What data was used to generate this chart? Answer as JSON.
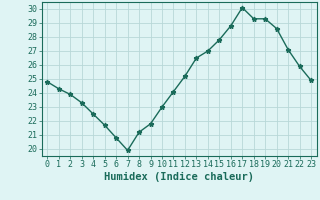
{
  "x": [
    0,
    1,
    2,
    3,
    4,
    5,
    6,
    7,
    8,
    9,
    10,
    11,
    12,
    13,
    14,
    15,
    16,
    17,
    18,
    19,
    20,
    21,
    22,
    23
  ],
  "y": [
    24.8,
    24.3,
    23.9,
    23.3,
    22.5,
    21.7,
    20.8,
    19.9,
    21.2,
    21.8,
    23.0,
    24.1,
    25.2,
    26.5,
    27.0,
    27.8,
    28.8,
    30.1,
    29.3,
    29.3,
    28.6,
    27.1,
    25.9,
    24.9
  ],
  "line_color": "#1a6b5a",
  "marker": "*",
  "marker_size": 3.5,
  "bg_color": "#dff4f4",
  "grid_color": "#b8d8d8",
  "xlabel": "Humidex (Indice chaleur)",
  "ylim": [
    19.5,
    30.5
  ],
  "xlim": [
    -0.5,
    23.5
  ],
  "yticks": [
    20,
    21,
    22,
    23,
    24,
    25,
    26,
    27,
    28,
    29,
    30
  ],
  "xticks": [
    0,
    1,
    2,
    3,
    4,
    5,
    6,
    7,
    8,
    9,
    10,
    11,
    12,
    13,
    14,
    15,
    16,
    17,
    18,
    19,
    20,
    21,
    22,
    23
  ],
  "tick_label_fontsize": 6.0,
  "xlabel_fontsize": 7.5,
  "line_width": 1.0
}
